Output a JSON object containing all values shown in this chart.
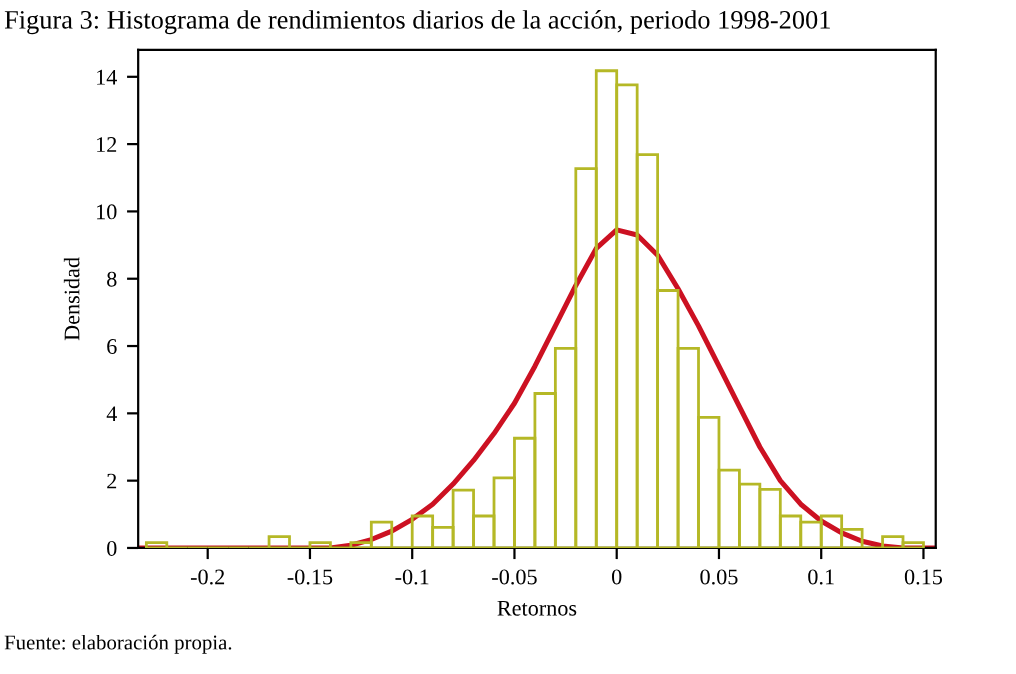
{
  "chart_data": {
    "type": "histogram",
    "title": "Figura 3: Histograma de rendimientos diarios de la acción, periodo 1998-2001",
    "xlabel": "Retornos",
    "ylabel": "Densidad",
    "annotations": [
      "Fuente: elaboración propia."
    ],
    "bins": [
      -0.23,
      -0.22,
      -0.21,
      -0.2,
      -0.19,
      -0.18,
      -0.17,
      -0.16,
      -0.15,
      -0.14,
      -0.13,
      -0.12,
      -0.11,
      -0.1,
      -0.09,
      -0.08,
      -0.07,
      -0.06,
      -0.05,
      -0.04,
      -0.03,
      -0.02,
      -0.01,
      0,
      0.01,
      0.02,
      0.03,
      0.04,
      0.05,
      0.06,
      0.07,
      0.08,
      0.09,
      0.1,
      0.11,
      0.12,
      0.13,
      0.14,
      0.15
    ],
    "values": [
      0.16,
      0,
      0,
      0,
      0,
      0,
      0.34,
      0,
      0.16,
      0,
      0.16,
      0.77,
      0,
      0.95,
      0.61,
      1.72,
      0.95,
      2.08,
      3.26,
      4.59,
      5.93,
      11.27,
      14.18,
      13.76,
      11.69,
      7.65,
      5.93,
      3.88,
      2.31,
      1.9,
      1.74,
      0.95,
      0.77,
      0.95,
      0.55,
      0,
      0.34,
      0.16
    ],
    "color": "#b5b826",
    "series": [
      {
        "type": "line",
        "color": "#cc1122",
        "x": [
          -0.234,
          -0.14,
          -0.13,
          -0.12,
          -0.11,
          -0.1,
          -0.09,
          -0.08,
          -0.07,
          -0.06,
          -0.05,
          -0.04,
          -0.03,
          -0.02,
          -0.01,
          0,
          0.01,
          0.02,
          0.03,
          0.04,
          0.05,
          0.06,
          0.07,
          0.08,
          0.09,
          0.1,
          0.11,
          0.12,
          0.13,
          0.14,
          0.156
        ],
        "values": [
          0,
          0,
          0.08,
          0.25,
          0.5,
          0.85,
          1.3,
          1.9,
          2.6,
          3.4,
          4.3,
          5.4,
          6.6,
          7.8,
          8.9,
          9.45,
          9.3,
          8.7,
          7.7,
          6.6,
          5.4,
          4.2,
          3.0,
          2.0,
          1.3,
          0.8,
          0.45,
          0.2,
          0.06,
          0,
          0
        ]
      }
    ],
    "xlim": [
      -0.234,
      0.156
    ],
    "ylim": [
      0,
      14.8
    ],
    "xticks": [
      -0.2,
      -0.15,
      -0.1,
      -0.05,
      0,
      0.05,
      0.1,
      0.15
    ],
    "yticks": [
      0,
      2,
      4,
      6,
      8,
      10,
      12,
      14
    ],
    "grid": false,
    "legend": false
  }
}
